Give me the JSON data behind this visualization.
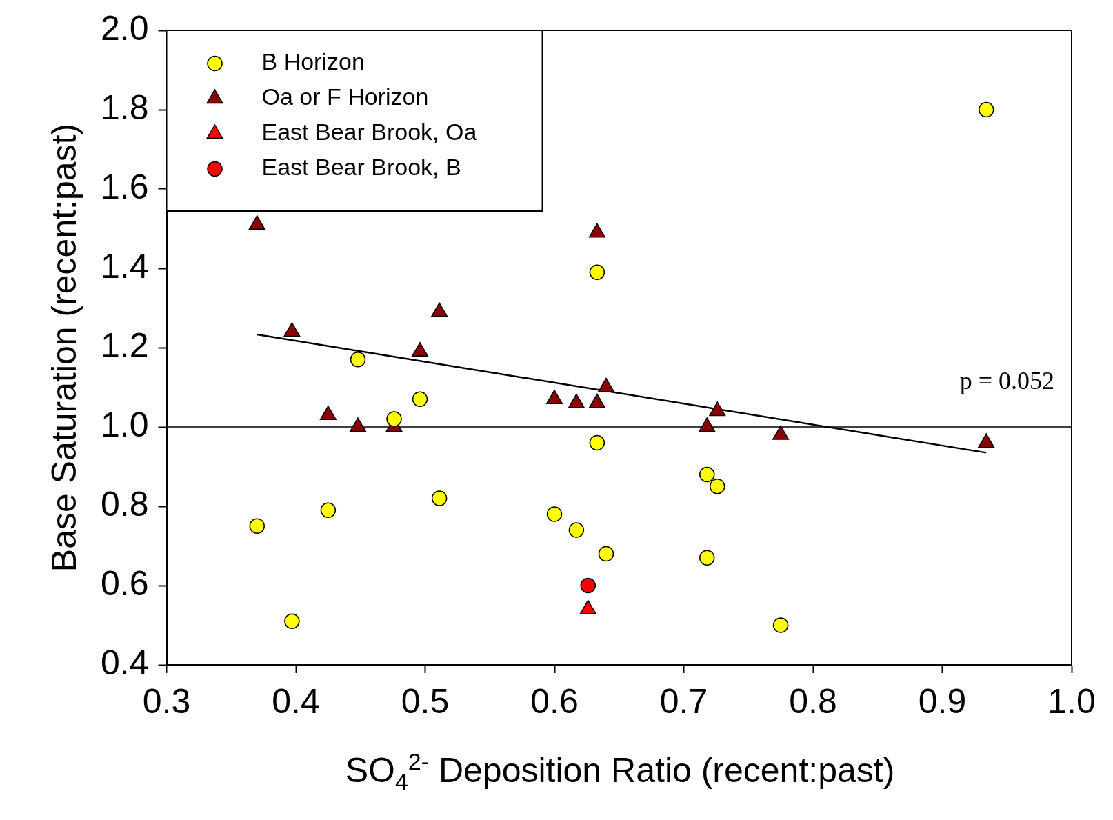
{
  "chart_data": {
    "type": "scatter",
    "xlabel": "SO$_{4}$$^{2-}$ Deposition Ratio (recent:past)",
    "ylabel": "Base Saturation (recent:past)",
    "xlim": [
      0.3,
      1.0
    ],
    "xticks": [
      {
        "value": 0.3,
        "label": "0.3"
      },
      {
        "value": 0.4,
        "label": "0.4"
      },
      {
        "value": 0.5,
        "label": "0.5"
      },
      {
        "value": 0.6,
        "label": "0.6"
      },
      {
        "value": 0.7,
        "label": "0.7"
      },
      {
        "value": 0.8,
        "label": "0.8"
      },
      {
        "value": 0.9,
        "label": "0.9"
      },
      {
        "value": 1.0,
        "label": "1.0"
      }
    ],
    "ylim": [
      0.4,
      2.0
    ],
    "yticks": [
      {
        "value": 0.4,
        "label": "0.4"
      },
      {
        "value": 0.6,
        "label": "0.6"
      },
      {
        "value": 0.8,
        "label": "0.8"
      },
      {
        "value": 1.0,
        "label": "1.0"
      },
      {
        "value": 1.2,
        "label": "1.2"
      },
      {
        "value": 1.4,
        "label": "1.4"
      },
      {
        "value": 1.6,
        "label": "1.6"
      },
      {
        "value": 1.8,
        "label": "1.8"
      },
      {
        "value": 2.0,
        "label": "2.0"
      }
    ],
    "grid": false,
    "legend": "top left",
    "series": [
      {
        "name": "B Horizon",
        "color": "#ffff00",
        "marker": "circle",
        "x": [
          0.37,
          0.397,
          0.425,
          0.448,
          0.476,
          0.496,
          0.511,
          0.6,
          0.617,
          0.633,
          0.633,
          0.64,
          0.718,
          0.726,
          0.718,
          0.775,
          0.934
        ],
        "values": [
          0.75,
          0.51,
          0.79,
          1.17,
          1.02,
          1.07,
          0.82,
          0.78,
          0.74,
          1.39,
          0.96,
          0.68,
          0.88,
          0.85,
          0.67,
          0.5,
          1.8
        ]
      },
      {
        "name": "Oa or F Horizon",
        "color": "#8b0000",
        "marker": "triangle",
        "x": [
          0.37,
          0.397,
          0.425,
          0.448,
          0.476,
          0.496,
          0.511,
          0.6,
          0.617,
          0.633,
          0.633,
          0.64,
          0.718,
          0.726,
          0.775,
          0.934
        ],
        "values": [
          1.51,
          1.24,
          1.03,
          1.0,
          1.0,
          1.19,
          1.29,
          1.07,
          1.06,
          1.49,
          1.06,
          1.1,
          1.0,
          1.04,
          0.98,
          0.96
        ]
      },
      {
        "name": "East Bear Brook, Oa",
        "color": "#ff0000",
        "marker": "triangle",
        "x": [
          0.626
        ],
        "values": [
          0.54
        ]
      },
      {
        "name": "East Bear Brook, B",
        "color": "#ff0000",
        "marker": "circle",
        "x": [
          0.626
        ],
        "values": [
          0.6
        ]
      },
      {
        "type": "line",
        "color": "#000000",
        "marker": "none",
        "x": [
          0.37,
          0.934
        ],
        "values": [
          1.233,
          0.935
        ]
      }
    ],
    "ref_lines": [
      {
        "axis": "y",
        "value": 1.0,
        "color": "#000000"
      }
    ],
    "annotations": [
      "p = 0.052"
    ]
  }
}
